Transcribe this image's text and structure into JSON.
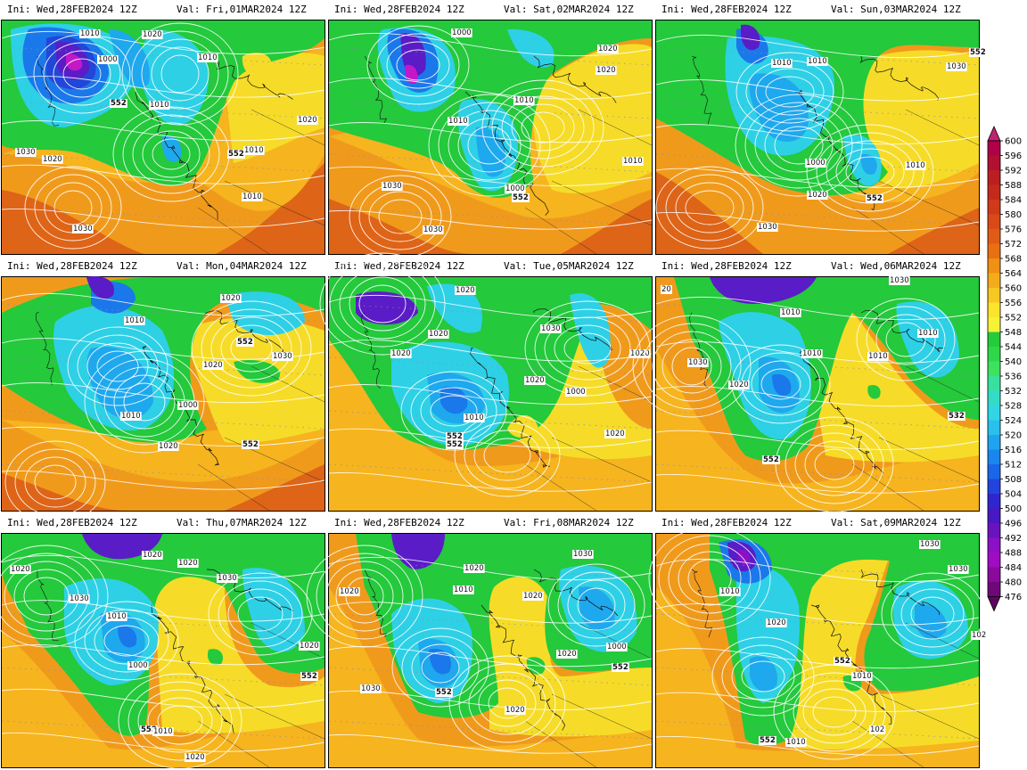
{
  "panels": [
    {
      "ini": "Ini:  Wed,28FEB2024 12Z",
      "val": "Val:  Fri,01MAR2024 12Z",
      "labels": [
        "1010",
        "1020",
        "1000",
        "552",
        "1010",
        "1010",
        "1020",
        "1030",
        "552",
        "1010",
        "1020",
        "1010",
        "1030"
      ]
    },
    {
      "ini": "Ini:  Wed,28FEB2024 12Z",
      "val": "Val:  Sat,02MAR2024 12Z",
      "labels": [
        "1000",
        "1020",
        "1010",
        "1010",
        "1030",
        "1030",
        "1000",
        "552",
        "1010",
        "1020"
      ]
    },
    {
      "ini": "Ini:  Wed,28FEB2024 12Z",
      "val": "Val:  Sun,03MAR2024 12Z",
      "labels": [
        "1010",
        "1010",
        "552",
        "1030",
        "1000",
        "1020",
        "552",
        "1010",
        "1030"
      ]
    },
    {
      "ini": "Ini:  Wed,28FEB2024 12Z",
      "val": "Val:  Mon,04MAR2024 12Z",
      "labels": [
        "1020",
        "1010",
        "552",
        "1020",
        "1030",
        "1000",
        "1010",
        "1020",
        "552"
      ]
    },
    {
      "ini": "Ini:  Wed,28FEB2024 12Z",
      "val": "Val:  Tue,05MAR2024 12Z",
      "labels": [
        "1020",
        "1020",
        "1030",
        "1020",
        "1020",
        "1020",
        "1000",
        "1010",
        "552",
        "552",
        "1020"
      ]
    },
    {
      "ini": "Ini:  Wed,28FEB2024 12Z",
      "val": "Val:  Wed,06MAR2024 12Z",
      "labels": [
        "1030",
        "1010",
        "1010",
        "1030",
        "1020",
        "1010",
        "1010",
        "552",
        "532",
        "20"
      ]
    },
    {
      "ini": "Ini:  Wed,28FEB2024 12Z",
      "val": "Val:  Thu,07MAR2024 12Z",
      "labels": [
        "1020",
        "1020",
        "1020",
        "1030",
        "1030",
        "1010",
        "1000",
        "1020",
        "552",
        "552",
        "1010",
        "1020"
      ]
    },
    {
      "ini": "Ini:  Wed,28FEB2024 12Z",
      "val": "Val:  Fri,08MAR2024 12Z",
      "labels": [
        "1030",
        "1020",
        "1010",
        "1020",
        "1020",
        "1000",
        "552",
        "1020",
        "1030",
        "1020",
        "552"
      ]
    },
    {
      "ini": "Ini:  Wed,28FEB2024 12Z",
      "val": "Val:  Sat,09MAR2024 12Z",
      "labels": [
        "1030",
        "1030",
        "1010",
        "1020",
        "552",
        "1010",
        "552",
        "1010",
        "102",
        "102"
      ]
    }
  ],
  "colorbar": {
    "ticks": [
      "600",
      "596",
      "592",
      "588",
      "584",
      "580",
      "576",
      "572",
      "568",
      "564",
      "560",
      "556",
      "552",
      "548",
      "544",
      "540",
      "536",
      "532",
      "528",
      "524",
      "520",
      "516",
      "512",
      "508",
      "504",
      "500",
      "496",
      "492",
      "488",
      "484",
      "480",
      "476"
    ],
    "colors": [
      "#b0004a",
      "#b21030",
      "#bb1f22",
      "#c42a1c",
      "#cf3a1a",
      "#d84a18",
      "#e05c16",
      "#e87012",
      "#f09014",
      "#f5ac1a",
      "#f8c822",
      "#fbe42c",
      "#f6f236",
      "#24cc3a",
      "#2ed84a",
      "#3ee25e",
      "#38e0a0",
      "#34dcc8",
      "#30d6e6",
      "#2ac0ec",
      "#1ea4ee",
      "#1a86ec",
      "#1a66e6",
      "#2244dc",
      "#3026d0",
      "#4818c2",
      "#6a12be",
      "#8c10c6",
      "#a00cc2",
      "#8a0a9c",
      "#6e0878"
    ],
    "top_cap_color": "#c0246e",
    "bottom_cap_color": "#5a0660"
  }
}
